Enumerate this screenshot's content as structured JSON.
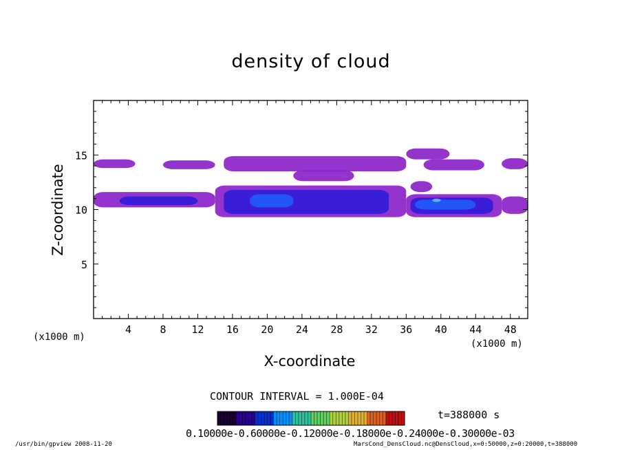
{
  "chart_data": {
    "type": "heatmap",
    "title": "density of cloud",
    "xlabel": "X-coordinate",
    "ylabel": "Z-coordinate",
    "x_unit": "(x1000 m)",
    "y_unit": "(x1000 m)",
    "xlim": [
      0,
      50
    ],
    "ylim": [
      0,
      20
    ],
    "x_ticks": [
      4,
      8,
      12,
      16,
      20,
      24,
      28,
      32,
      36,
      40,
      44,
      48
    ],
    "y_ticks": [
      5,
      10,
      15
    ],
    "contour_interval": "CONTOUR INTERVAL = 1.000E-04",
    "time_label": "t=388000 s",
    "colorbar_labels": "0.10000e-0.60000e-0.12000e-0.18000e-0.24000e-0.30000e-03",
    "colorbar_colors": [
      "#1a0030",
      "#2a0090",
      "#0030d0",
      "#0090ff",
      "#30c0a0",
      "#60d060",
      "#b0d040",
      "#e0b030",
      "#e06020",
      "#c01010"
    ],
    "cloud_colors": {
      "low": "#8a1ec8",
      "mid": "#2a1ad8",
      "high": "#2060ff",
      "peak": "#60c0ff"
    },
    "cloud_regions": [
      {
        "level": "low",
        "x": [
          0,
          4.8
        ],
        "z": [
          13.8,
          14.6
        ]
      },
      {
        "level": "low",
        "x": [
          8,
          14
        ],
        "z": [
          13.7,
          14.5
        ]
      },
      {
        "level": "low",
        "x": [
          15,
          36
        ],
        "z": [
          13.5,
          14.9
        ]
      },
      {
        "level": "low",
        "x": [
          23,
          30
        ],
        "z": [
          12.6,
          13.6
        ]
      },
      {
        "level": "low",
        "x": [
          36,
          41
        ],
        "z": [
          14.6,
          15.6
        ]
      },
      {
        "level": "low",
        "x": [
          38,
          45
        ],
        "z": [
          13.6,
          14.6
        ]
      },
      {
        "level": "low",
        "x": [
          47,
          50
        ],
        "z": [
          13.7,
          14.7
        ]
      },
      {
        "level": "low",
        "x": [
          36.5,
          39
        ],
        "z": [
          11.6,
          12.6
        ]
      },
      {
        "level": "low",
        "x": [
          0,
          14
        ],
        "z": [
          10.2,
          11.6
        ]
      },
      {
        "level": "low",
        "x": [
          14,
          36
        ],
        "z": [
          9.3,
          12.2
        ]
      },
      {
        "level": "low",
        "x": [
          36,
          47
        ],
        "z": [
          9.3,
          11.4
        ]
      },
      {
        "level": "low",
        "x": [
          47,
          50
        ],
        "z": [
          9.6,
          11.2
        ]
      },
      {
        "level": "mid",
        "x": [
          3,
          12
        ],
        "z": [
          10.4,
          11.2
        ]
      },
      {
        "level": "mid",
        "x": [
          15,
          34
        ],
        "z": [
          9.6,
          11.8
        ]
      },
      {
        "level": "mid",
        "x": [
          36.5,
          46
        ],
        "z": [
          9.6,
          11.1
        ]
      },
      {
        "level": "high",
        "x": [
          18,
          23
        ],
        "z": [
          10.2,
          11.4
        ]
      },
      {
        "level": "high",
        "x": [
          37,
          44
        ],
        "z": [
          10.0,
          10.9
        ]
      },
      {
        "level": "peak",
        "x": [
          39,
          40
        ],
        "z": [
          10.7,
          11.0
        ]
      }
    ]
  },
  "footer": {
    "left": "/usr/bin/gpview   2008-11-20",
    "right": "MarsCond_DensCloud.nc@DensCloud,x=0:50000,z=0:20000,t=388000"
  }
}
